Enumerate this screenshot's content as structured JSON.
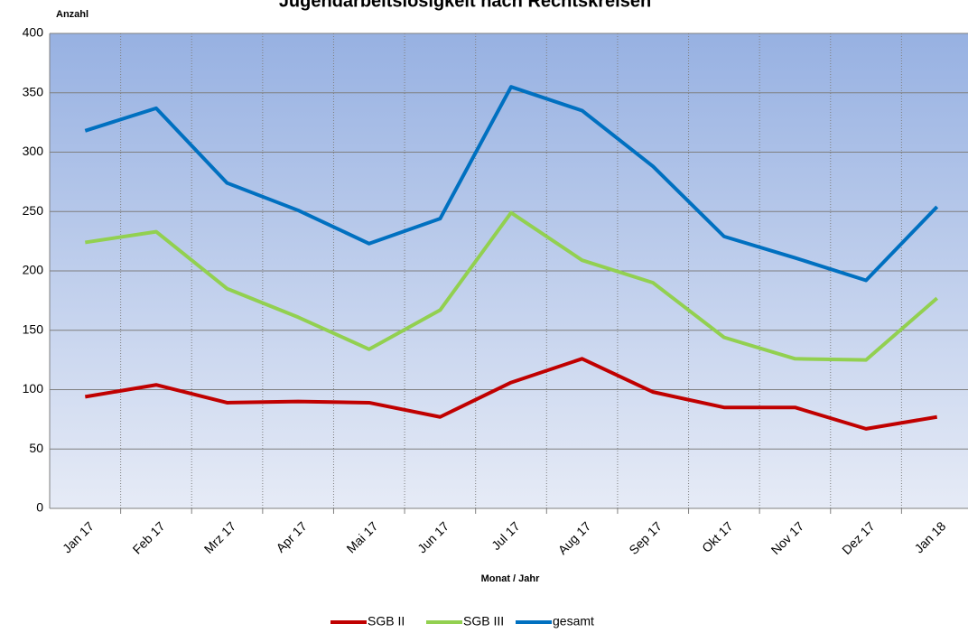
{
  "chart_data": {
    "type": "line",
    "title": "Jugendarbeitslosigkeit nach Rechtskreisen",
    "y_label": "Anzahl",
    "x_label": "Monat / Jahr",
    "categories": [
      "Jan 17",
      "Feb 17",
      "Mrz 17",
      "Apr 17",
      "Mai 17",
      "Jun 17",
      "Jul 17",
      "Aug 17",
      "Sep 17",
      "Okt 17",
      "Nov 17",
      "Dez 17",
      "Jan 18"
    ],
    "series": [
      {
        "name": "SGB II",
        "color": "#c00000",
        "values": [
          94,
          104,
          89,
          90,
          89,
          77,
          106,
          126,
          98,
          85,
          85,
          67,
          77
        ]
      },
      {
        "name": "SGB III",
        "color": "#92d050",
        "values": [
          224,
          233,
          185,
          161,
          134,
          167,
          249,
          209,
          190,
          144,
          126,
          125,
          177
        ]
      },
      {
        "name": "gesamt",
        "color": "#0070c0",
        "values": [
          318,
          337,
          274,
          251,
          223,
          244,
          355,
          335,
          288,
          229,
          211,
          192,
          254
        ]
      }
    ],
    "ylim": [
      0,
      400
    ],
    "yticks": [
      0,
      50,
      100,
      150,
      200,
      250,
      300,
      350,
      400
    ],
    "grid": true
  }
}
